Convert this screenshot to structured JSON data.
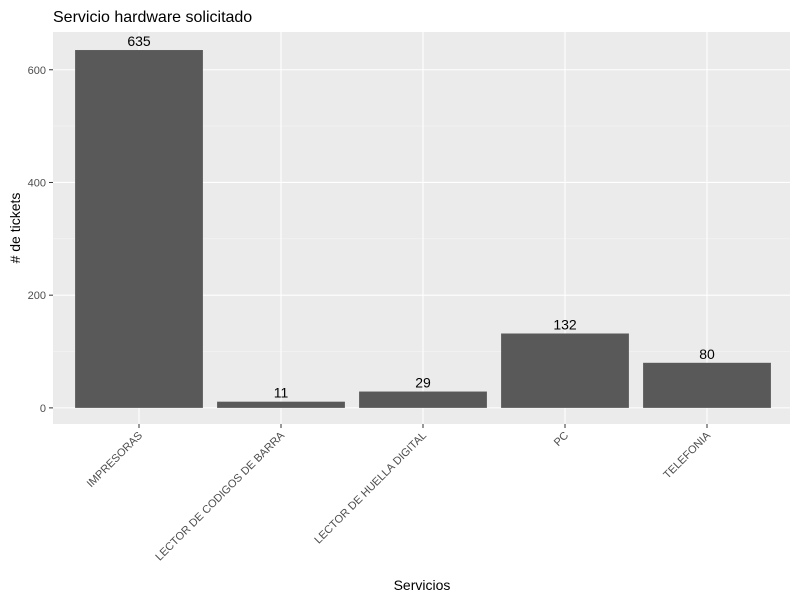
{
  "chart_data": {
    "type": "bar",
    "title": "Servicio hardware solicitado",
    "xlabel": "Servicios",
    "ylabel": "# de tickets",
    "categories": [
      "IMPRESORAS",
      "LECTOR DE CODIGOS DE BARRA",
      "LECTOR DE HUELLA DIGITAL",
      "PC",
      "TELEFONIA"
    ],
    "values": [
      635,
      11,
      29,
      132,
      80
    ],
    "yticks": [
      0,
      200,
      400,
      600
    ],
    "ylim": [
      -28.6,
      667
    ],
    "grid": true,
    "legend": "none",
    "colors": {
      "panel": "#ebebeb",
      "bar": "#595959",
      "grid_major": "#ffffff",
      "grid_minor": "#f5f5f5"
    }
  }
}
